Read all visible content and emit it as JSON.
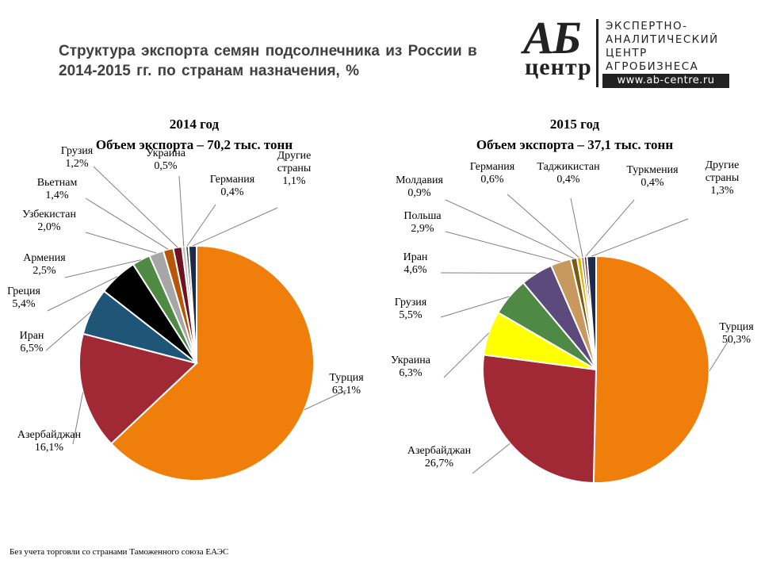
{
  "title": "Структура экспорта семян подсолнечника из России в 2014-2015 гг. по странам назначения, %",
  "logo": {
    "mark": "АБ",
    "mark_sub": "центр",
    "lines": [
      "ЭКСПЕРТНО-",
      "АНАЛИТИЧЕСКИЙ",
      "ЦЕНТР",
      "АГРОБИЗНЕСА"
    ],
    "url": "www.ab-centre.ru"
  },
  "footnote": "Без учета торговли со странами Таможенного союза ЕАЭС",
  "chart_data": [
    {
      "type": "pie",
      "title": "2014 год",
      "subtitle": "Объем экспорта  – 70,2 тыс. тонн",
      "slices": [
        {
          "label": "Турция",
          "value": 63.1,
          "value_label": "63,1%",
          "color": "#F07E0A"
        },
        {
          "label": "Азербайджан",
          "value": 16.1,
          "value_label": "16,1%",
          "color": "#A02935"
        },
        {
          "label": "Иран",
          "value": 6.5,
          "value_label": "6,5%",
          "color": "#1F5577"
        },
        {
          "label": "Греция",
          "value": 5.4,
          "value_label": "5,4%",
          "color": "#000000"
        },
        {
          "label": "Армения",
          "value": 2.5,
          "value_label": "2,5%",
          "color": "#4F8A45"
        },
        {
          "label": "Узбекистан",
          "value": 2.0,
          "value_label": "2,0%",
          "color": "#A6A6A6"
        },
        {
          "label": "Вьетнам",
          "value": 1.4,
          "value_label": "1,4%",
          "color": "#B65708"
        },
        {
          "label": "Грузия",
          "value": 1.2,
          "value_label": "1,2%",
          "color": "#6E1220"
        },
        {
          "label": "Украина",
          "value": 0.5,
          "value_label": "0,5%",
          "color": "#C0C0C0"
        },
        {
          "label": "Германия",
          "value": 0.4,
          "value_label": "0,4%",
          "color": "#4A4A4A"
        },
        {
          "label": "Другие страны",
          "value": 1.1,
          "value_label": "1,1%",
          "color": "#1E2A4A"
        }
      ]
    },
    {
      "type": "pie",
      "title": "2015 год",
      "subtitle": "Объем экспорта  – 37,1 тыс. тонн",
      "slices": [
        {
          "label": "Турция",
          "value": 50.3,
          "value_label": "50,3%",
          "color": "#F07E0A"
        },
        {
          "label": "Азербайджан",
          "value": 26.7,
          "value_label": "26,7%",
          "color": "#A02935"
        },
        {
          "label": "Украина",
          "value": 6.3,
          "value_label": "6,3%",
          "color": "#FFFF00"
        },
        {
          "label": "Грузия",
          "value": 5.5,
          "value_label": "5,5%",
          "color": "#4F8A45"
        },
        {
          "label": "Иран",
          "value": 4.6,
          "value_label": "4,6%",
          "color": "#5C4A7D"
        },
        {
          "label": "Польша",
          "value": 2.9,
          "value_label": "2,9%",
          "color": "#C8995E"
        },
        {
          "label": "Молдавия",
          "value": 0.9,
          "value_label": "0,9%",
          "color": "#7A5A10"
        },
        {
          "label": "Германия",
          "value": 0.6,
          "value_label": "0,6%",
          "color": "#E0B000"
        },
        {
          "label": "Таджикистан",
          "value": 0.4,
          "value_label": "0,4%",
          "color": "#8F6F4F"
        },
        {
          "label": "Туркмения",
          "value": 0.4,
          "value_label": "0,4%",
          "color": "#6E1220"
        },
        {
          "label": "Другие страны",
          "value": 1.3,
          "value_label": "1,3%",
          "color": "#1E2A4A"
        }
      ]
    }
  ]
}
